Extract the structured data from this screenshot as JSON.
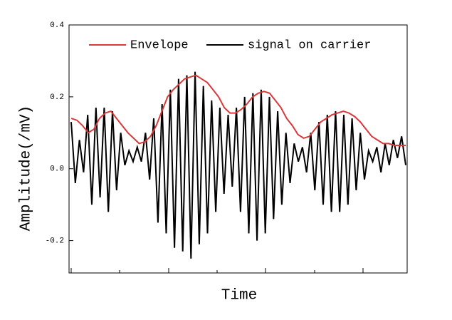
{
  "chart_data": {
    "type": "line",
    "x_label": "Time",
    "y_label": "Amplitude(/mV)",
    "ylim": [
      -0.29,
      0.4
    ],
    "yticks": [
      0.4,
      0.2,
      {
        "value": 0,
        "label": "0.0"
      },
      -0.2
    ],
    "grid": false,
    "legend_position": "top",
    "series": [
      {
        "name": "Envelope",
        "color": "#d9393a",
        "values": [
          0.14,
          0.135,
          0.12,
          0.1,
          0.11,
          0.14,
          0.155,
          0.16,
          0.14,
          0.12,
          0.1,
          0.085,
          0.07,
          0.075,
          0.09,
          0.12,
          0.16,
          0.2,
          0.22,
          0.235,
          0.25,
          0.255,
          0.26,
          0.25,
          0.24,
          0.22,
          0.2,
          0.17,
          0.155,
          0.155,
          0.165,
          0.18,
          0.2,
          0.21,
          0.215,
          0.21,
          0.19,
          0.17,
          0.14,
          0.12,
          0.095,
          0.085,
          0.09,
          0.11,
          0.13,
          0.14,
          0.15,
          0.155,
          0.16,
          0.155,
          0.145,
          0.13,
          0.11,
          0.09,
          0.08,
          0.07,
          0.07,
          0.065,
          0.065,
          0.065
        ]
      },
      {
        "name": "signal on carrier",
        "color": "#000000",
        "values": [
          0.13,
          -0.04,
          0.08,
          -0.01,
          0.15,
          -0.1,
          0.17,
          -0.08,
          0.17,
          -0.12,
          0.16,
          -0.06,
          0.1,
          0.01,
          0.05,
          0.02,
          0.06,
          0.02,
          0.1,
          -0.03,
          0.14,
          -0.15,
          0.18,
          -0.18,
          0.22,
          -0.22,
          0.25,
          -0.23,
          0.26,
          -0.25,
          0.27,
          -0.21,
          0.23,
          -0.18,
          0.19,
          -0.12,
          0.17,
          -0.07,
          0.15,
          -0.05,
          0.17,
          -0.12,
          0.2,
          -0.18,
          0.21,
          -0.2,
          0.22,
          -0.18,
          0.2,
          -0.14,
          0.16,
          -0.1,
          0.1,
          -0.04,
          0.07,
          0.02,
          0.06,
          -0.01,
          0.1,
          -0.06,
          0.13,
          -0.1,
          0.15,
          -0.12,
          0.16,
          -0.12,
          0.15,
          -0.1,
          0.14,
          -0.06,
          0.1,
          -0.03,
          0.05,
          0.02,
          0.06,
          -0.01,
          0.07,
          0.01,
          0.08,
          0.03,
          0.09,
          0.01
        ]
      }
    ]
  }
}
